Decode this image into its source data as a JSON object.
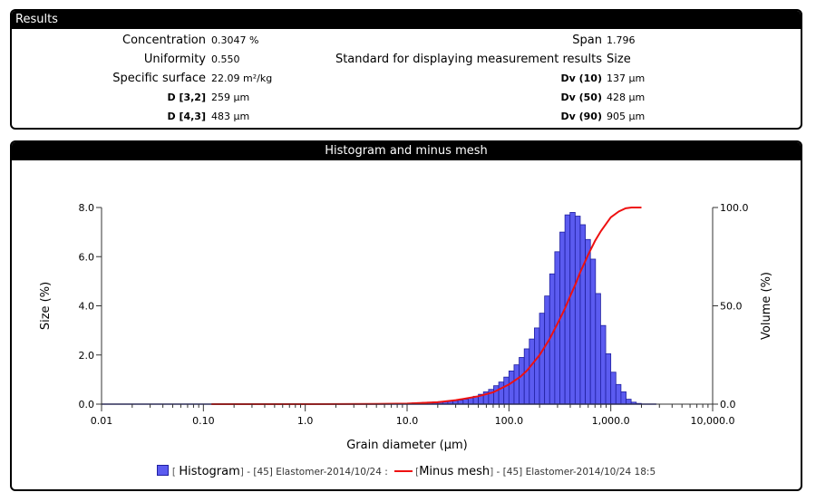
{
  "results": {
    "title": "Results",
    "left": [
      {
        "label": "Concentration",
        "value": "0.3047 %",
        "style": "big"
      },
      {
        "label": "Uniformity",
        "value": "0.550",
        "style": "big"
      },
      {
        "label": "Specific surface",
        "value": "22.09 m²/kg",
        "style": "big"
      },
      {
        "label": "D [3,2]",
        "value": "259 µm",
        "style": "small"
      },
      {
        "label": "D [4,3]",
        "value": "483 µm",
        "style": "small"
      }
    ],
    "right": [
      {
        "label": "Span",
        "value": "1.796",
        "style": "big"
      },
      {
        "label": "Standard for displaying measurement results",
        "value": "Size",
        "style": "big"
      },
      {
        "label": "Dv (10)",
        "value": "137 µm",
        "style": "small"
      },
      {
        "label": "Dv (50)",
        "value": "428 µm",
        "style": "small"
      },
      {
        "label": "Dv (90)",
        "value": "905 µm",
        "style": "small"
      }
    ]
  },
  "histogram_panel": {
    "title": "Histogram and minus mesh",
    "legend": {
      "histogram_name": "Histogram",
      "histogram_source": "- [45] Elastomer-2014/10/24 :",
      "minus_mesh_name": "Minus mesh",
      "minus_mesh_source": "- [45] Elastomer-2014/10/24 18:5"
    }
  },
  "chart_data": {
    "type": "bar",
    "title": "",
    "xlabel": "Grain diameter (µm)",
    "ylabel": "Size (%)",
    "y2label": "Volume (%)",
    "x_scale": "log",
    "xlim": [
      0.01,
      10000
    ],
    "ylim": [
      0,
      8
    ],
    "y2lim": [
      0,
      100
    ],
    "x_ticks": [
      "0.01",
      "0.10",
      "1.0",
      "10.0",
      "100.0",
      "1,000.0",
      "10,000.0"
    ],
    "y_ticks": [
      "0.0",
      "2.0",
      "4.0",
      "6.0",
      "8.0"
    ],
    "y2_ticks": [
      "0.0",
      "50.0",
      "100.0"
    ],
    "grid": false,
    "legend_position": "bottom",
    "colors": {
      "histogram_fill": "#5b5bf0",
      "histogram_edge": "#2020a0",
      "minus_mesh": "#ee1111",
      "axis": "#333333"
    },
    "histogram": {
      "name": "Histogram",
      "bin_edges": [
        11.2,
        12.6,
        14.1,
        15.8,
        17.8,
        20.0,
        22.4,
        25.1,
        28.2,
        31.6,
        35.5,
        39.8,
        44.7,
        50.1,
        56.2,
        63.1,
        70.8,
        79.4,
        89.1,
        100.0,
        112.2,
        125.9,
        141.3,
        158.5,
        177.8,
        199.5,
        223.9,
        251.2,
        281.8,
        316.2,
        354.8,
        398.1,
        446.7,
        501.2,
        562.3,
        631.0,
        707.9,
        794.3,
        891.3,
        1000.0,
        1122.0,
        1259.0,
        1413.0,
        1585.0,
        1778.0,
        1995.0
      ],
      "values": [
        0.05,
        0.06,
        0.07,
        0.08,
        0.09,
        0.1,
        0.11,
        0.12,
        0.14,
        0.16,
        0.2,
        0.25,
        0.32,
        0.4,
        0.5,
        0.6,
        0.75,
        0.9,
        1.1,
        1.35,
        1.6,
        1.9,
        2.25,
        2.65,
        3.1,
        3.7,
        4.4,
        5.3,
        6.2,
        7.0,
        7.7,
        7.8,
        7.65,
        7.3,
        6.7,
        5.9,
        4.5,
        3.2,
        2.05,
        1.3,
        0.8,
        0.5,
        0.2,
        0.08,
        0.03
      ]
    },
    "minus_mesh": {
      "name": "Minus mesh",
      "x": [
        0.12,
        1,
        5,
        10,
        20,
        30,
        50,
        70,
        100,
        130,
        150,
        200,
        250,
        300,
        350,
        400,
        450,
        500,
        600,
        700,
        800,
        1000,
        1200,
        1400,
        1600,
        1800,
        2000
      ],
      "y": [
        0,
        0,
        0.1,
        0.3,
        1,
        2,
        4,
        6,
        10,
        14,
        17,
        25,
        33,
        41,
        48,
        55,
        61,
        67,
        76,
        83,
        88,
        95,
        98,
        99.6,
        100,
        100,
        100
      ]
    }
  }
}
